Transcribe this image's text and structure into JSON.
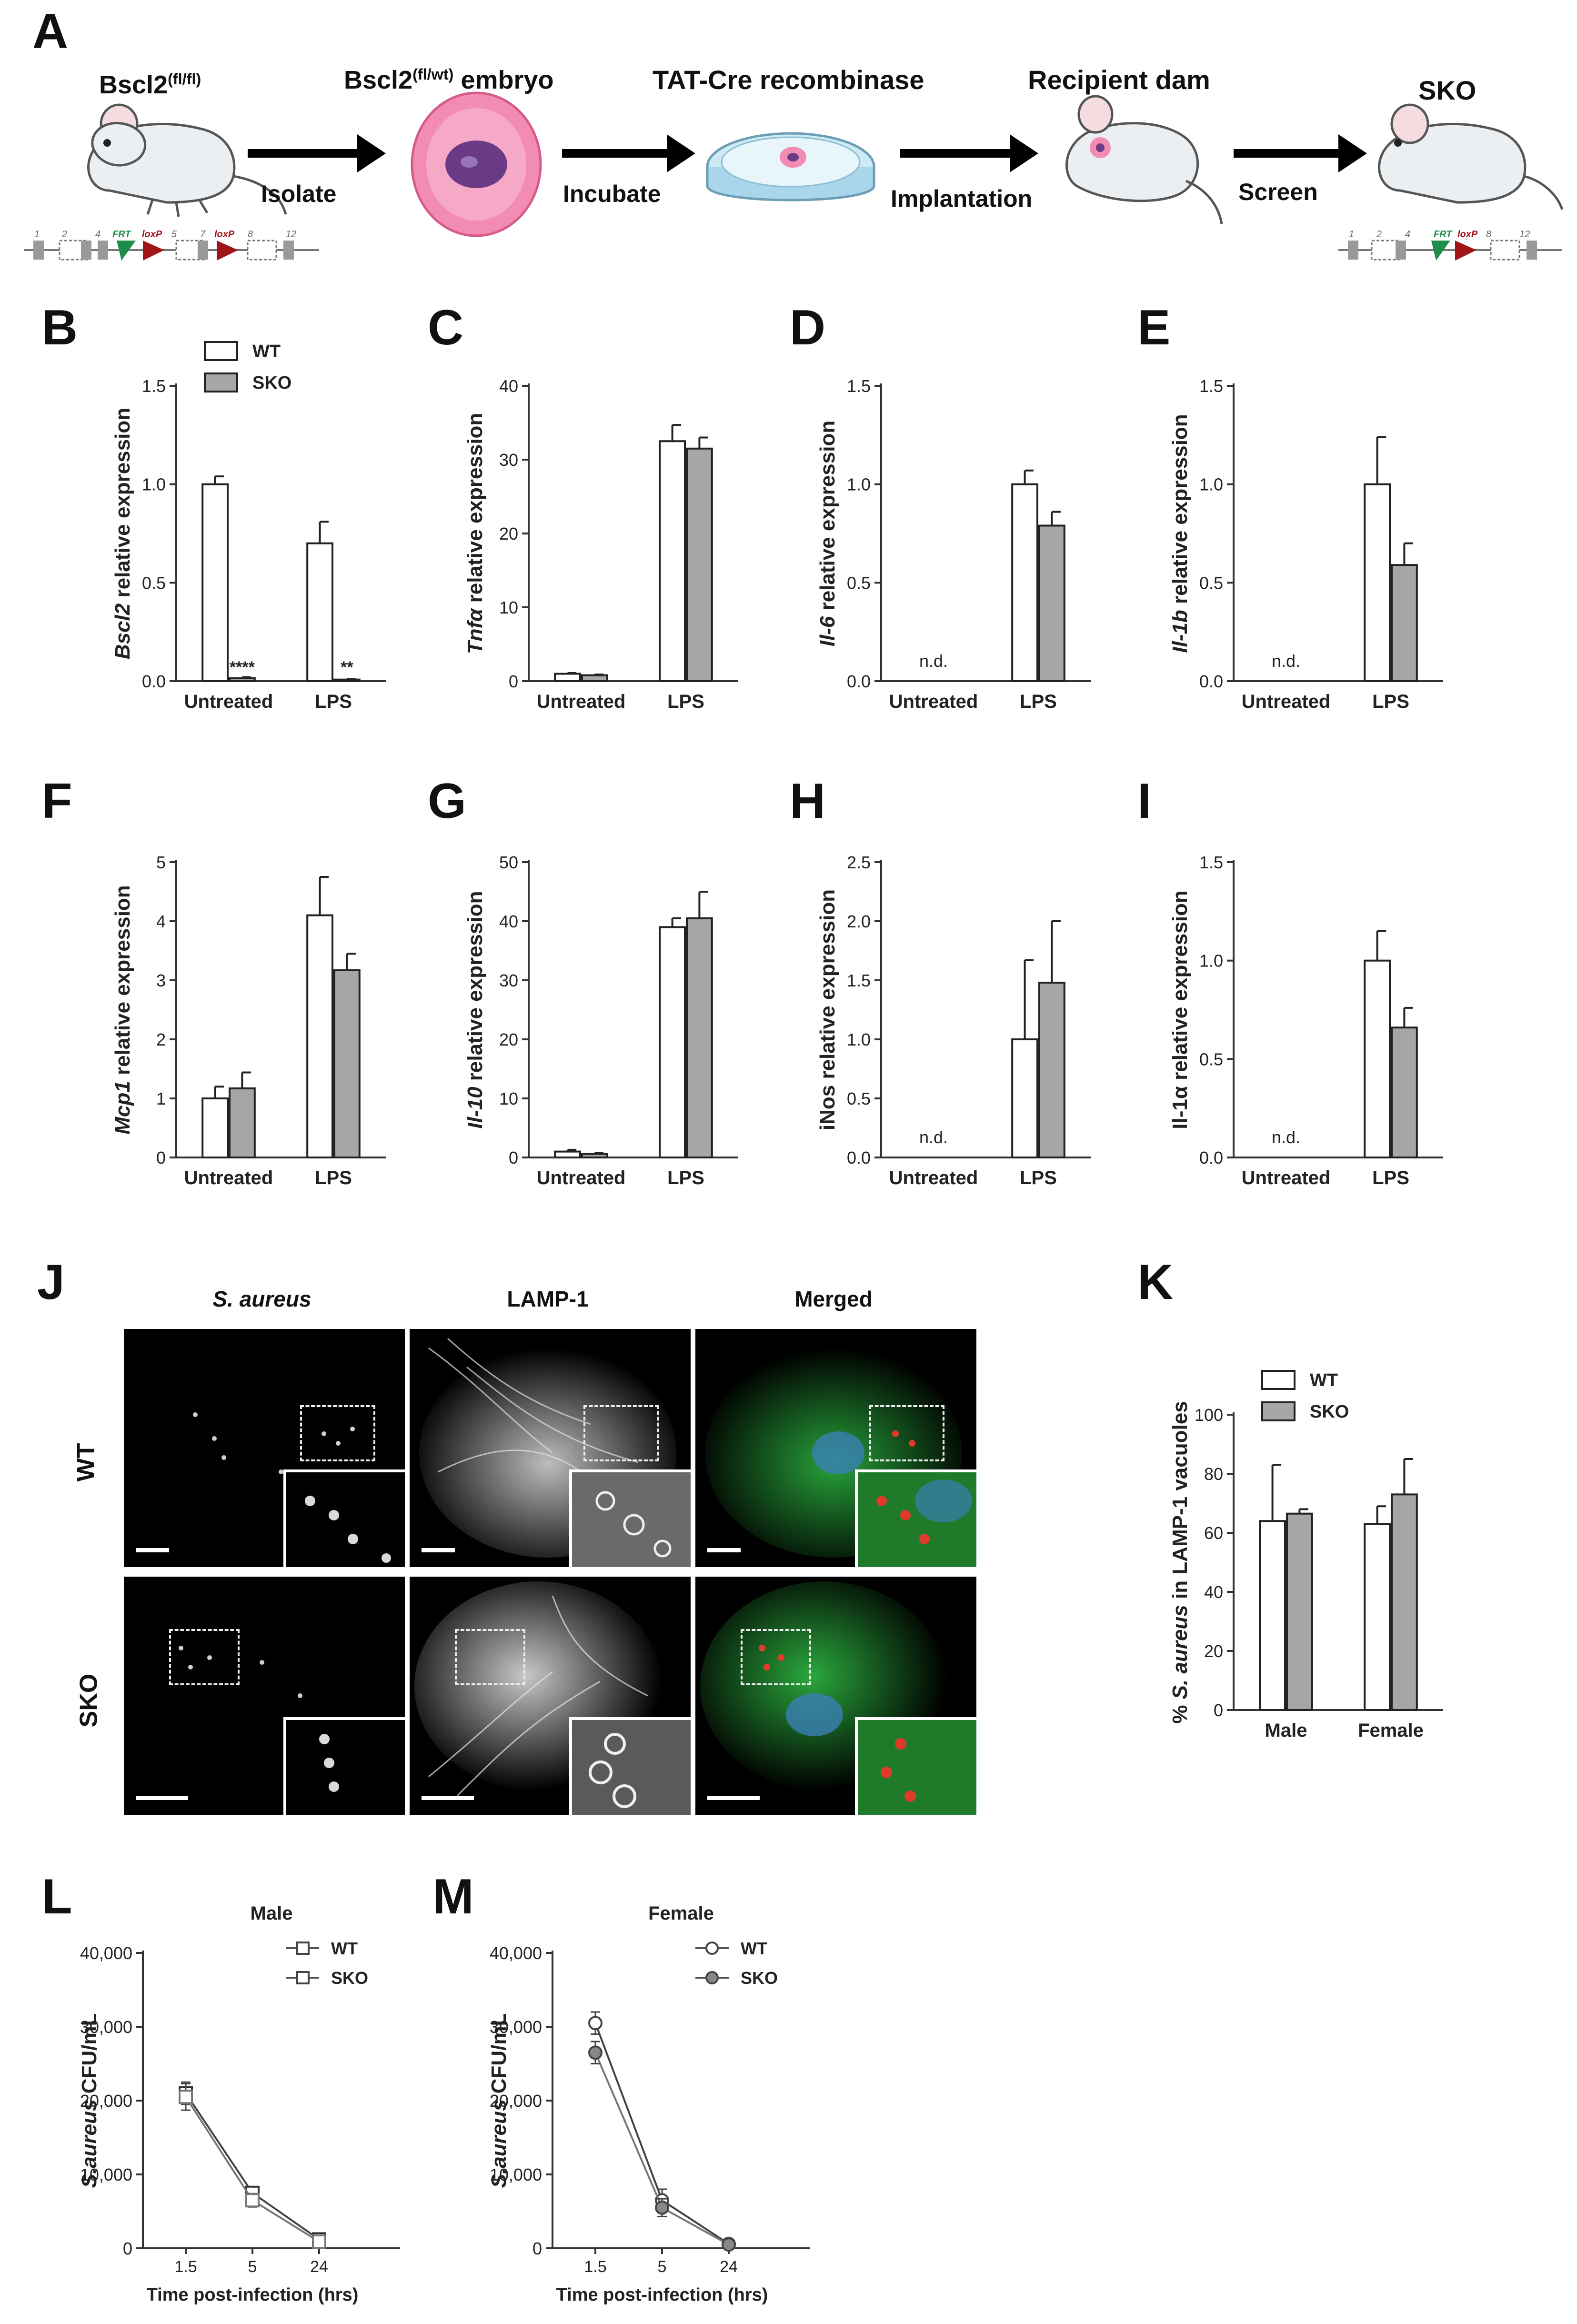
{
  "panels": {
    "A": "A",
    "B": "B",
    "C": "C",
    "D": "D",
    "E": "E",
    "F": "F",
    "G": "G",
    "H": "H",
    "I": "I",
    "J": "J",
    "K": "K",
    "L": "L",
    "M": "M"
  },
  "workflow": {
    "step1_title": "Bscl2",
    "step1_sup": "(fl/fl)",
    "arrow1_label": "Isolate",
    "step2_title": "Bscl2",
    "step2_sup": "(fl/wt)",
    "step2_suffix": " embryo",
    "arrow2_label": "Incubate",
    "step3_title": "TAT-Cre recombinase",
    "arrow3_label": "Implantation",
    "step4_title": "Recipient dam",
    "arrow4_label": "Screen",
    "step5_title": "SKO",
    "gene_left_labels": [
      "1",
      "2",
      "4",
      "FRT",
      "5",
      "loxP",
      "7",
      "loxP",
      "8",
      "12"
    ],
    "gene_right_labels": [
      "1",
      "2",
      "4",
      "FRT",
      "loxP",
      "8",
      "12"
    ]
  },
  "microscopy": {
    "col_labels": [
      "S. aureus",
      "LAMP-1",
      "Merged"
    ],
    "row_labels": [
      "WT",
      "SKO"
    ]
  },
  "colors": {
    "wt_fill": "#ffffff",
    "sko_fill": "#a6a6a6",
    "merged_green": "#1f8a2a",
    "merged_blue": "#3a7fb5",
    "bacteria_red": "#e03a2a",
    "arrow": "#000000",
    "embryo_pink": "#f28cb3",
    "embryo_purple": "#6b3a86",
    "frt_green": "#1f8c4a",
    "loxp_red": "#a01515"
  },
  "chart_data": [
    {
      "id": "B",
      "type": "bar",
      "ylabel_italic": "Bscl2",
      "ylabel_rest": " relative expression",
      "categories": [
        "Untreated",
        "LPS"
      ],
      "series": [
        {
          "name": "WT",
          "values": [
            1.0,
            0.7
          ],
          "errors": [
            0.04,
            0.11
          ]
        },
        {
          "name": "SKO",
          "values": [
            0.015,
            0.008
          ],
          "errors": [
            0.005,
            0.003
          ]
        }
      ],
      "yticks": [
        "0.0",
        "0.5",
        "1.0",
        "1.5"
      ],
      "ylim": [
        0,
        1.5
      ],
      "annotations": [
        {
          "category": 0,
          "series": 1,
          "text": "****"
        },
        {
          "category": 1,
          "series": 1,
          "text": "**"
        }
      ],
      "legend": [
        "WT",
        "SKO"
      ],
      "legend_position": "top"
    },
    {
      "id": "C",
      "type": "bar",
      "ylabel_italic": "Tnfα",
      "ylabel_rest": " relative expression",
      "categories": [
        "Untreated",
        "LPS"
      ],
      "series": [
        {
          "name": "WT",
          "values": [
            1.0,
            32.5
          ],
          "errors": [
            0.1,
            2.2
          ]
        },
        {
          "name": "SKO",
          "values": [
            0.8,
            31.5
          ],
          "errors": [
            0.1,
            1.5
          ]
        }
      ],
      "yticks": [
        "0",
        "10",
        "20",
        "30",
        "40"
      ],
      "ylim": [
        0,
        40
      ]
    },
    {
      "id": "D",
      "type": "bar",
      "ylabel_italic": "Il-6",
      "ylabel_rest": " relative expression",
      "categories": [
        "Untreated",
        "LPS"
      ],
      "series": [
        {
          "name": "WT",
          "values": [
            0,
            1.0
          ],
          "errors": [
            0,
            0.07
          ]
        },
        {
          "name": "SKO",
          "values": [
            0,
            0.79
          ],
          "errors": [
            0,
            0.07
          ]
        }
      ],
      "yticks": [
        "0.0",
        "0.5",
        "1.0",
        "1.5"
      ],
      "ylim": [
        0,
        1.5
      ],
      "annotations": [
        {
          "category": 0,
          "text": "n.d."
        }
      ]
    },
    {
      "id": "E",
      "type": "bar",
      "ylabel_italic": "Il-1b",
      "ylabel_rest": " relative expression",
      "categories": [
        "Untreated",
        "LPS"
      ],
      "series": [
        {
          "name": "WT",
          "values": [
            0,
            1.0
          ],
          "errors": [
            0,
            0.24
          ]
        },
        {
          "name": "SKO",
          "values": [
            0,
            0.59
          ],
          "errors": [
            0,
            0.11
          ]
        }
      ],
      "yticks": [
        "0.0",
        "0.5",
        "1.0",
        "1.5"
      ],
      "ylim": [
        0,
        1.5
      ],
      "annotations": [
        {
          "category": 0,
          "text": "n.d."
        }
      ]
    },
    {
      "id": "F",
      "type": "bar",
      "ylabel_italic": "Mcp1",
      "ylabel_rest": " relative expression",
      "categories": [
        "Untreated",
        "LPS"
      ],
      "series": [
        {
          "name": "WT",
          "values": [
            1.0,
            4.1
          ],
          "errors": [
            0.2,
            0.65
          ]
        },
        {
          "name": "SKO",
          "values": [
            1.17,
            3.17
          ],
          "errors": [
            0.27,
            0.28
          ]
        }
      ],
      "yticks": [
        "0",
        "1",
        "2",
        "3",
        "4",
        "5"
      ],
      "ylim": [
        0,
        5
      ]
    },
    {
      "id": "G",
      "type": "bar",
      "ylabel_italic": "Il-10",
      "ylabel_rest": " relative expression",
      "categories": [
        "Untreated",
        "LPS"
      ],
      "series": [
        {
          "name": "WT",
          "values": [
            1.0,
            39.0
          ],
          "errors": [
            0.3,
            1.5
          ]
        },
        {
          "name": "SKO",
          "values": [
            0.6,
            40.5
          ],
          "errors": [
            0.2,
            4.5
          ]
        }
      ],
      "yticks": [
        "0",
        "10",
        "20",
        "30",
        "40",
        "50"
      ],
      "ylim": [
        0,
        50
      ]
    },
    {
      "id": "H",
      "type": "bar",
      "ylabel_italic": "",
      "ylabel_rest": "iNos relative expression",
      "categories": [
        "Untreated",
        "LPS"
      ],
      "series": [
        {
          "name": "WT",
          "values": [
            0,
            1.0
          ],
          "errors": [
            0,
            0.67
          ]
        },
        {
          "name": "SKO",
          "values": [
            0,
            1.48
          ],
          "errors": [
            0,
            0.52
          ]
        }
      ],
      "yticks": [
        "0.0",
        "0.5",
        "1.0",
        "1.5",
        "2.0",
        "2.5"
      ],
      "ylim": [
        0,
        2.5
      ],
      "annotations": [
        {
          "category": 0,
          "text": "n.d."
        }
      ]
    },
    {
      "id": "I",
      "type": "bar",
      "ylabel_italic": "",
      "ylabel_rest": "Il-1α relative expression",
      "categories": [
        "Untreated",
        "LPS"
      ],
      "series": [
        {
          "name": "WT",
          "values": [
            0,
            1.0
          ],
          "errors": [
            0,
            0.15
          ]
        },
        {
          "name": "SKO",
          "values": [
            0,
            0.66
          ],
          "errors": [
            0,
            0.1
          ]
        }
      ],
      "yticks": [
        "0.0",
        "0.5",
        "1.0",
        "1.5"
      ],
      "ylim": [
        0,
        1.5
      ],
      "annotations": [
        {
          "category": 0,
          "text": "n.d."
        }
      ]
    },
    {
      "id": "K",
      "type": "bar",
      "ylabel_pre": "% ",
      "ylabel_italic": "S. aureus",
      "ylabel_rest": " in LAMP-1 vacuoles",
      "categories": [
        "Male",
        "Female"
      ],
      "series": [
        {
          "name": "WT",
          "values": [
            64,
            63
          ],
          "errors": [
            19,
            6
          ]
        },
        {
          "name": "SKO",
          "values": [
            66.5,
            73
          ],
          "errors": [
            1.5,
            12
          ]
        }
      ],
      "yticks": [
        "0",
        "20",
        "40",
        "60",
        "80",
        "100"
      ],
      "ylim": [
        0,
        100
      ],
      "legend": [
        "WT",
        "SKO"
      ],
      "legend_position": "top"
    },
    {
      "id": "L",
      "type": "line",
      "title": "Male",
      "ylabel_italic": "S.aureus",
      "ylabel_rest": " CFU/mL",
      "xlabel": "Time post-infection (hrs)",
      "categories": [
        "1.5",
        "5",
        "24"
      ],
      "series": [
        {
          "name": "WT",
          "values": [
            21000,
            7500,
            1200
          ],
          "errors": [
            1500,
            600,
            300
          ],
          "marker": "square-open"
        },
        {
          "name": "SKO",
          "values": [
            20500,
            6500,
            900
          ],
          "errors": [
            1800,
            900,
            250
          ],
          "marker": "square-open-gray"
        }
      ],
      "yticks": [
        "0",
        "10,000",
        "20,000",
        "30,000",
        "40,000"
      ],
      "ylim": [
        0,
        40000
      ],
      "legend": [
        "WT",
        "SKO"
      ],
      "legend_position": "top-right"
    },
    {
      "id": "M",
      "type": "line",
      "title": "Female",
      "ylabel_italic": "S.aureus",
      "ylabel_rest": " CFU/mL",
      "xlabel": "Time post-infection (hrs)",
      "categories": [
        "1.5",
        "5",
        "24"
      ],
      "series": [
        {
          "name": "WT",
          "values": [
            30500,
            6500,
            600
          ],
          "errors": [
            1500,
            1500,
            150
          ],
          "marker": "circle-open"
        },
        {
          "name": "SKO",
          "values": [
            26500,
            5500,
            500
          ],
          "errors": [
            1500,
            1200,
            150
          ],
          "marker": "circle-filled-gray"
        }
      ],
      "yticks": [
        "0",
        "10,000",
        "20,000",
        "30,000",
        "40,000"
      ],
      "ylim": [
        0,
        40000
      ],
      "legend": [
        "WT",
        "SKO"
      ],
      "legend_position": "top-right"
    }
  ]
}
